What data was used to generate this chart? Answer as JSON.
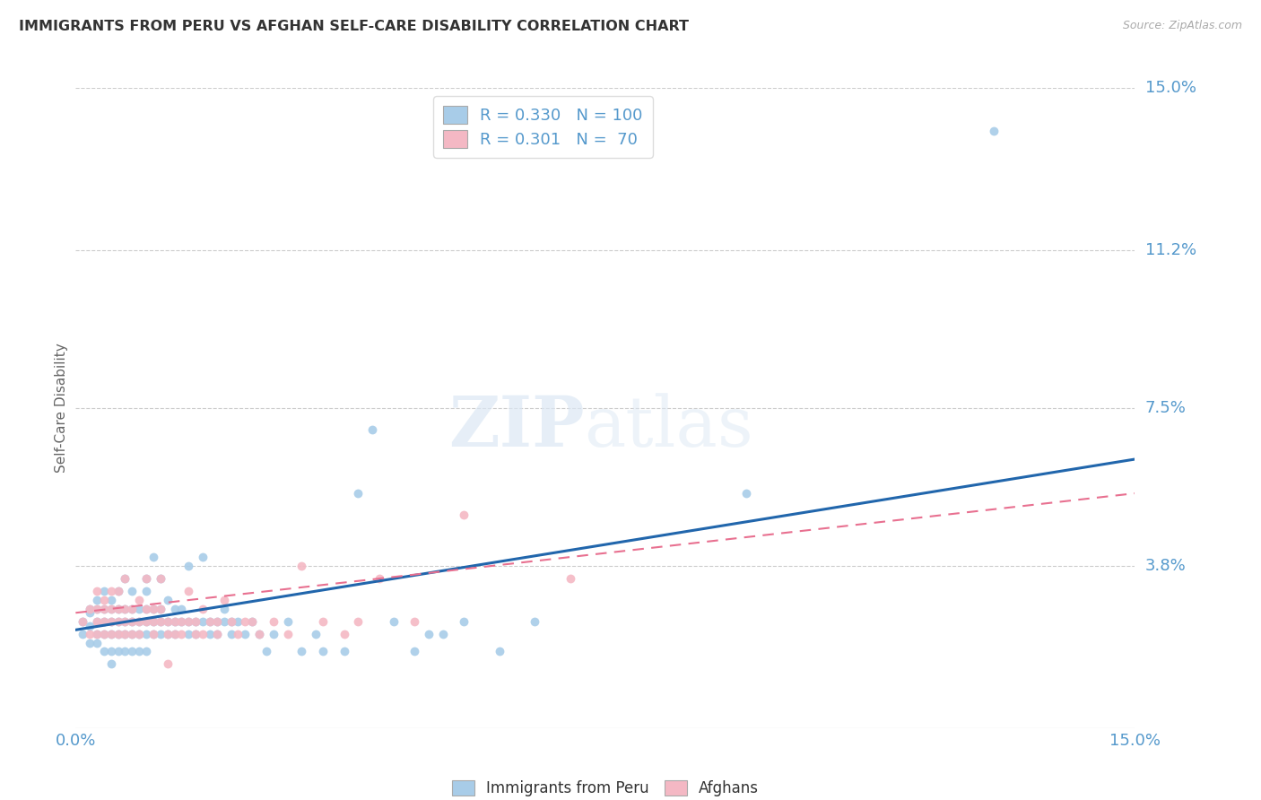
{
  "title": "IMMIGRANTS FROM PERU VS AFGHAN SELF-CARE DISABILITY CORRELATION CHART",
  "source": "Source: ZipAtlas.com",
  "ylabel": "Self-Care Disability",
  "xlim": [
    0.0,
    0.15
  ],
  "ylim": [
    0.0,
    0.15
  ],
  "ytick_values": [
    0.038,
    0.075,
    0.112,
    0.15
  ],
  "ytick_labels": [
    "3.8%",
    "7.5%",
    "11.2%",
    "15.0%"
  ],
  "legend_blue_R": "0.330",
  "legend_blue_N": "100",
  "legend_pink_R": "0.301",
  "legend_pink_N": "70",
  "legend_label_blue": "Immigrants from Peru",
  "legend_label_pink": "Afghans",
  "blue_color": "#a8cce8",
  "pink_color": "#f4b8c4",
  "trend_blue_color": "#2166ac",
  "trend_pink_color": "#e87090",
  "background_color": "#ffffff",
  "grid_color": "#cccccc",
  "title_color": "#333333",
  "axis_label_color": "#5599cc",
  "blue_trend_x": [
    0.0,
    0.15
  ],
  "blue_trend_y": [
    0.023,
    0.063
  ],
  "pink_trend_x": [
    0.0,
    0.15
  ],
  "pink_trend_y": [
    0.027,
    0.055
  ],
  "blue_scatter": [
    [
      0.001,
      0.025
    ],
    [
      0.001,
      0.022
    ],
    [
      0.002,
      0.027
    ],
    [
      0.002,
      0.024
    ],
    [
      0.002,
      0.02
    ],
    [
      0.002,
      0.028
    ],
    [
      0.003,
      0.025
    ],
    [
      0.003,
      0.022
    ],
    [
      0.003,
      0.028
    ],
    [
      0.003,
      0.03
    ],
    [
      0.003,
      0.02
    ],
    [
      0.004,
      0.025
    ],
    [
      0.004,
      0.022
    ],
    [
      0.004,
      0.028
    ],
    [
      0.004,
      0.018
    ],
    [
      0.004,
      0.032
    ],
    [
      0.005,
      0.025
    ],
    [
      0.005,
      0.022
    ],
    [
      0.005,
      0.028
    ],
    [
      0.005,
      0.018
    ],
    [
      0.005,
      0.03
    ],
    [
      0.005,
      0.015
    ],
    [
      0.006,
      0.025
    ],
    [
      0.006,
      0.022
    ],
    [
      0.006,
      0.028
    ],
    [
      0.006,
      0.032
    ],
    [
      0.006,
      0.018
    ],
    [
      0.007,
      0.025
    ],
    [
      0.007,
      0.022
    ],
    [
      0.007,
      0.028
    ],
    [
      0.007,
      0.035
    ],
    [
      0.007,
      0.018
    ],
    [
      0.008,
      0.025
    ],
    [
      0.008,
      0.022
    ],
    [
      0.008,
      0.028
    ],
    [
      0.008,
      0.032
    ],
    [
      0.008,
      0.018
    ],
    [
      0.009,
      0.025
    ],
    [
      0.009,
      0.022
    ],
    [
      0.009,
      0.028
    ],
    [
      0.009,
      0.018
    ],
    [
      0.01,
      0.025
    ],
    [
      0.01,
      0.022
    ],
    [
      0.01,
      0.028
    ],
    [
      0.01,
      0.035
    ],
    [
      0.01,
      0.018
    ],
    [
      0.01,
      0.032
    ],
    [
      0.011,
      0.025
    ],
    [
      0.011,
      0.022
    ],
    [
      0.011,
      0.028
    ],
    [
      0.011,
      0.04
    ],
    [
      0.012,
      0.025
    ],
    [
      0.012,
      0.022
    ],
    [
      0.012,
      0.028
    ],
    [
      0.012,
      0.035
    ],
    [
      0.013,
      0.025
    ],
    [
      0.013,
      0.022
    ],
    [
      0.013,
      0.03
    ],
    [
      0.014,
      0.025
    ],
    [
      0.014,
      0.022
    ],
    [
      0.014,
      0.028
    ],
    [
      0.015,
      0.025
    ],
    [
      0.015,
      0.028
    ],
    [
      0.016,
      0.025
    ],
    [
      0.016,
      0.022
    ],
    [
      0.016,
      0.038
    ],
    [
      0.017,
      0.025
    ],
    [
      0.017,
      0.022
    ],
    [
      0.018,
      0.025
    ],
    [
      0.018,
      0.04
    ],
    [
      0.019,
      0.025
    ],
    [
      0.019,
      0.022
    ],
    [
      0.02,
      0.025
    ],
    [
      0.02,
      0.022
    ],
    [
      0.021,
      0.025
    ],
    [
      0.021,
      0.028
    ],
    [
      0.022,
      0.025
    ],
    [
      0.022,
      0.022
    ],
    [
      0.023,
      0.025
    ],
    [
      0.024,
      0.022
    ],
    [
      0.025,
      0.025
    ],
    [
      0.026,
      0.022
    ],
    [
      0.027,
      0.018
    ],
    [
      0.028,
      0.022
    ],
    [
      0.03,
      0.025
    ],
    [
      0.032,
      0.018
    ],
    [
      0.034,
      0.022
    ],
    [
      0.035,
      0.018
    ],
    [
      0.038,
      0.018
    ],
    [
      0.04,
      0.055
    ],
    [
      0.042,
      0.07
    ],
    [
      0.045,
      0.025
    ],
    [
      0.048,
      0.018
    ],
    [
      0.05,
      0.022
    ],
    [
      0.052,
      0.022
    ],
    [
      0.055,
      0.025
    ],
    [
      0.06,
      0.018
    ],
    [
      0.065,
      0.025
    ],
    [
      0.095,
      0.055
    ],
    [
      0.13,
      0.14
    ]
  ],
  "pink_scatter": [
    [
      0.001,
      0.025
    ],
    [
      0.002,
      0.028
    ],
    [
      0.002,
      0.022
    ],
    [
      0.003,
      0.025
    ],
    [
      0.003,
      0.028
    ],
    [
      0.003,
      0.022
    ],
    [
      0.003,
      0.032
    ],
    [
      0.004,
      0.025
    ],
    [
      0.004,
      0.022
    ],
    [
      0.004,
      0.028
    ],
    [
      0.004,
      0.03
    ],
    [
      0.005,
      0.025
    ],
    [
      0.005,
      0.028
    ],
    [
      0.005,
      0.022
    ],
    [
      0.005,
      0.032
    ],
    [
      0.006,
      0.025
    ],
    [
      0.006,
      0.028
    ],
    [
      0.006,
      0.032
    ],
    [
      0.006,
      0.022
    ],
    [
      0.007,
      0.025
    ],
    [
      0.007,
      0.028
    ],
    [
      0.007,
      0.022
    ],
    [
      0.007,
      0.035
    ],
    [
      0.008,
      0.025
    ],
    [
      0.008,
      0.028
    ],
    [
      0.008,
      0.022
    ],
    [
      0.009,
      0.025
    ],
    [
      0.009,
      0.03
    ],
    [
      0.009,
      0.022
    ],
    [
      0.01,
      0.025
    ],
    [
      0.01,
      0.028
    ],
    [
      0.01,
      0.035
    ],
    [
      0.011,
      0.025
    ],
    [
      0.011,
      0.028
    ],
    [
      0.011,
      0.022
    ],
    [
      0.012,
      0.025
    ],
    [
      0.012,
      0.028
    ],
    [
      0.012,
      0.035
    ],
    [
      0.013,
      0.025
    ],
    [
      0.013,
      0.022
    ],
    [
      0.013,
      0.015
    ],
    [
      0.014,
      0.025
    ],
    [
      0.014,
      0.022
    ],
    [
      0.015,
      0.025
    ],
    [
      0.015,
      0.022
    ],
    [
      0.016,
      0.025
    ],
    [
      0.016,
      0.032
    ],
    [
      0.017,
      0.025
    ],
    [
      0.017,
      0.022
    ],
    [
      0.018,
      0.028
    ],
    [
      0.018,
      0.022
    ],
    [
      0.019,
      0.025
    ],
    [
      0.02,
      0.025
    ],
    [
      0.02,
      0.022
    ],
    [
      0.021,
      0.03
    ],
    [
      0.022,
      0.025
    ],
    [
      0.023,
      0.022
    ],
    [
      0.024,
      0.025
    ],
    [
      0.025,
      0.025
    ],
    [
      0.026,
      0.022
    ],
    [
      0.028,
      0.025
    ],
    [
      0.03,
      0.022
    ],
    [
      0.032,
      0.038
    ],
    [
      0.035,
      0.025
    ],
    [
      0.038,
      0.022
    ],
    [
      0.04,
      0.025
    ],
    [
      0.043,
      0.035
    ],
    [
      0.048,
      0.025
    ],
    [
      0.055,
      0.05
    ],
    [
      0.07,
      0.035
    ]
  ]
}
